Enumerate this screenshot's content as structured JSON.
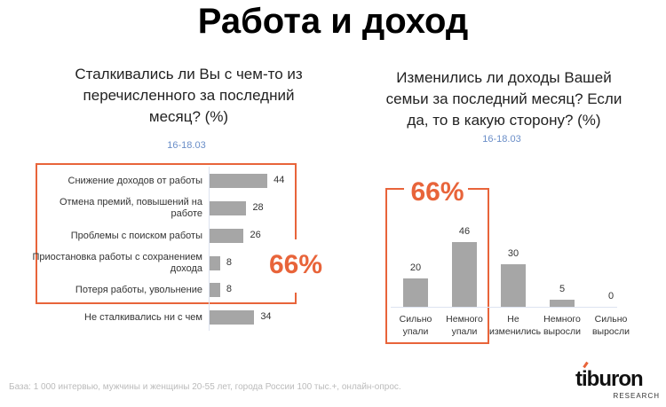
{
  "title": "Работа и доход",
  "footer": "База: 1 000 интервью, мужчины и женщины 20-55 лет, города России 100 тыс.+, онлайн-опрос.",
  "logo": {
    "name": "tiburon",
    "sub": "RESEARCH"
  },
  "colors": {
    "accent": "#e8643a",
    "bar": "#a6a6a6",
    "date": "#6a8ec8"
  },
  "chart_data": [
    {
      "type": "bar",
      "orientation": "horizontal",
      "title": "Сталкивались ли Вы с чем-то из перечисленного за последний месяц? (%)",
      "subtitle": "16-18.03",
      "categories": [
        "Снижение доходов от работы",
        "Отмена премий, повышений на работе",
        "Проблемы с поиском работы",
        "Приостановка работы с сохранением дохода",
        "Потеря работы, увольнение",
        "Не сталкивались ни с чем"
      ],
      "values": [
        44,
        28,
        26,
        8,
        8,
        34
      ],
      "highlight": {
        "label": "66%",
        "categories": [
          0,
          1,
          2,
          3,
          4
        ]
      }
    },
    {
      "type": "bar",
      "orientation": "vertical",
      "title": "Изменились ли доходы Вашей семьи за последний месяц? Если да, то в какую сторону? (%)",
      "subtitle": "16-18.03",
      "categories": [
        "Сильно упали",
        "Немного упали",
        "Не изменились",
        "Немного выросли",
        "Сильно выросли"
      ],
      "values": [
        20,
        46,
        30,
        5,
        0
      ],
      "highlight": {
        "label": "66%",
        "categories": [
          0,
          1
        ]
      }
    }
  ]
}
